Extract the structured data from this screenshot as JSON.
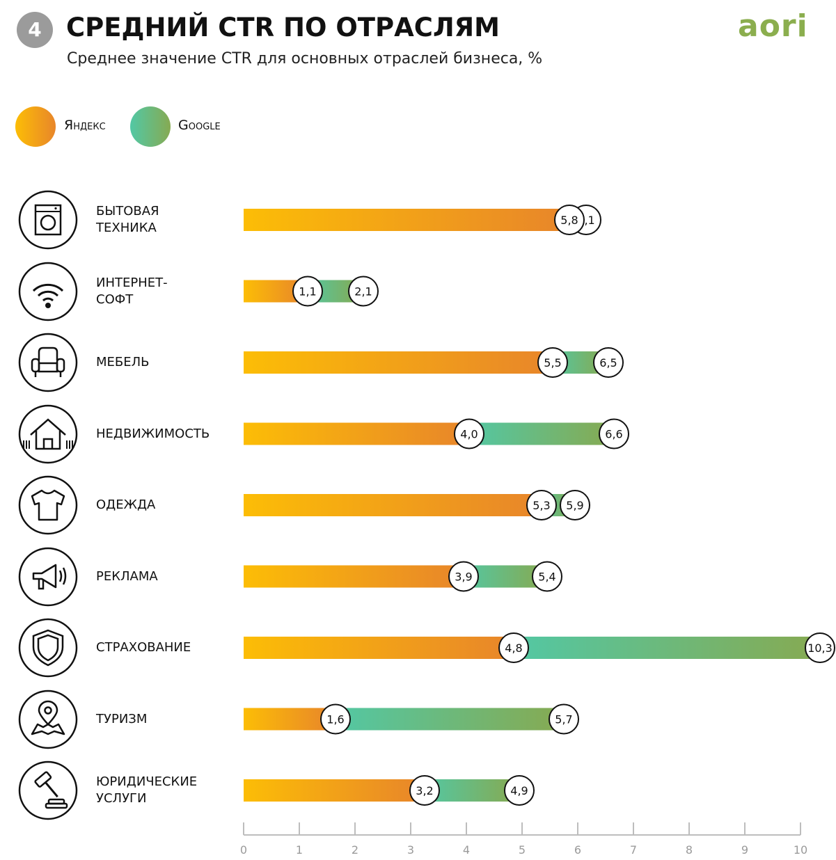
{
  "header": {
    "number": "4",
    "title": "СРЕДНИЙ CTR ПО ОТРАСЛЯМ",
    "subtitle": "Среднее значение CTR для основных отраслей бизнеса, %",
    "logo": "aori"
  },
  "legend": {
    "yandex": "Яндекс",
    "google": "Google"
  },
  "colors": {
    "yandex_start": "#fcbd06",
    "yandex_end": "#e8862a",
    "google_start": "#52c8a5",
    "google_end": "#86aa52",
    "axis": "#bdbdbd",
    "badge": "#9b9b9b",
    "logo": "#8bae4e"
  },
  "chart_data": {
    "type": "bar",
    "xlim": [
      0,
      10
    ],
    "x_ticks": [
      "0",
      "1",
      "2",
      "3",
      "4",
      "5",
      "6",
      "7",
      "8",
      "9",
      "10"
    ],
    "categories": [
      "БЫТОВАЯ\nТЕХНИКА",
      "ИНТЕРНЕТ-\nСОФТ",
      "МЕБЕЛЬ",
      "НЕДВИЖИМОСТЬ",
      "ОДЕЖДА",
      "РЕКЛАМА",
      "СТРАХОВАНИЕ",
      "ТУРИЗМ",
      "ЮРИДИЧЕСКИЕ\nУСЛУГИ"
    ],
    "icons": [
      "washing-machine-icon",
      "wifi-icon",
      "armchair-icon",
      "house-icon",
      "tshirt-icon",
      "megaphone-icon",
      "shield-icon",
      "map-pin-icon",
      "gavel-icon"
    ],
    "series": [
      {
        "name": "Яндекс",
        "values": [
          5.8,
          1.1,
          5.5,
          4.0,
          5.3,
          3.9,
          4.8,
          1.6,
          3.2
        ],
        "labels": [
          "5,8",
          "1,1",
          "5,5",
          "4,0",
          "5,3",
          "3,9",
          "4,8",
          "1,6",
          "3,2"
        ]
      },
      {
        "name": "Google",
        "values": [
          6.1,
          2.1,
          6.5,
          6.6,
          5.9,
          5.4,
          10.3,
          5.7,
          4.9
        ],
        "labels": [
          "6,1",
          "2,1",
          "6,5",
          "6,6",
          "5,9",
          "5,4",
          "10,3",
          "5,7",
          "4,9"
        ]
      }
    ]
  }
}
